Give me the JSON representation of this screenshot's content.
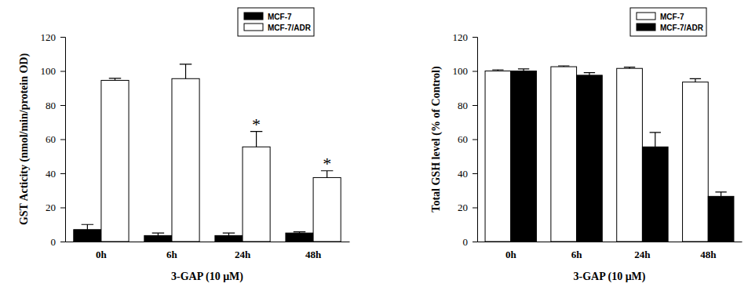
{
  "chart_data": [
    {
      "type": "bar",
      "y_label": "GST Acticity (nmol/min/protein OD)",
      "x_label": "3-GAP (10 μM)",
      "categories": [
        "0h",
        "6h",
        "24h",
        "48h"
      ],
      "series": [
        {
          "name": "MCF-7",
          "color": "#000000",
          "values": [
            7,
            3.5,
            3.5,
            5
          ],
          "errors": [
            3,
            1.5,
            1.5,
            0.7
          ]
        },
        {
          "name": "MCF-7/ADR",
          "color": "#ffffff",
          "values": [
            94.5,
            95.5,
            55.5,
            37.5
          ],
          "errors": [
            1.2,
            8.5,
            9,
            4
          ]
        }
      ],
      "ylim": [
        0,
        120
      ],
      "yticks": [
        0,
        20,
        40,
        60,
        80,
        100,
        120
      ],
      "legend": "upper right",
      "annotations": [
        {
          "text": "*",
          "category": "24h",
          "series": "MCF-7/ADR"
        },
        {
          "text": "*",
          "category": "48h",
          "series": "MCF-7/ADR"
        }
      ]
    },
    {
      "type": "bar",
      "y_label": "Total GSH level (% of Control)",
      "x_label": "3-GAP (10 μM)",
      "categories": [
        "0h",
        "6h",
        "24h",
        "48h"
      ],
      "series": [
        {
          "name": "MCF-7",
          "color": "#ffffff",
          "values": [
            100,
            102.5,
            101.5,
            93.5
          ],
          "errors": [
            0.7,
            0.5,
            0.7,
            2
          ]
        },
        {
          "name": "MCF-7/ADR",
          "color": "#000000",
          "values": [
            100,
            97.5,
            55.5,
            26.5
          ],
          "errors": [
            1.2,
            1.5,
            8.5,
            2.5
          ]
        }
      ],
      "ylim": [
        0,
        120
      ],
      "yticks": [
        0,
        20,
        40,
        60,
        80,
        100,
        120
      ],
      "legend": "upper right"
    }
  ]
}
